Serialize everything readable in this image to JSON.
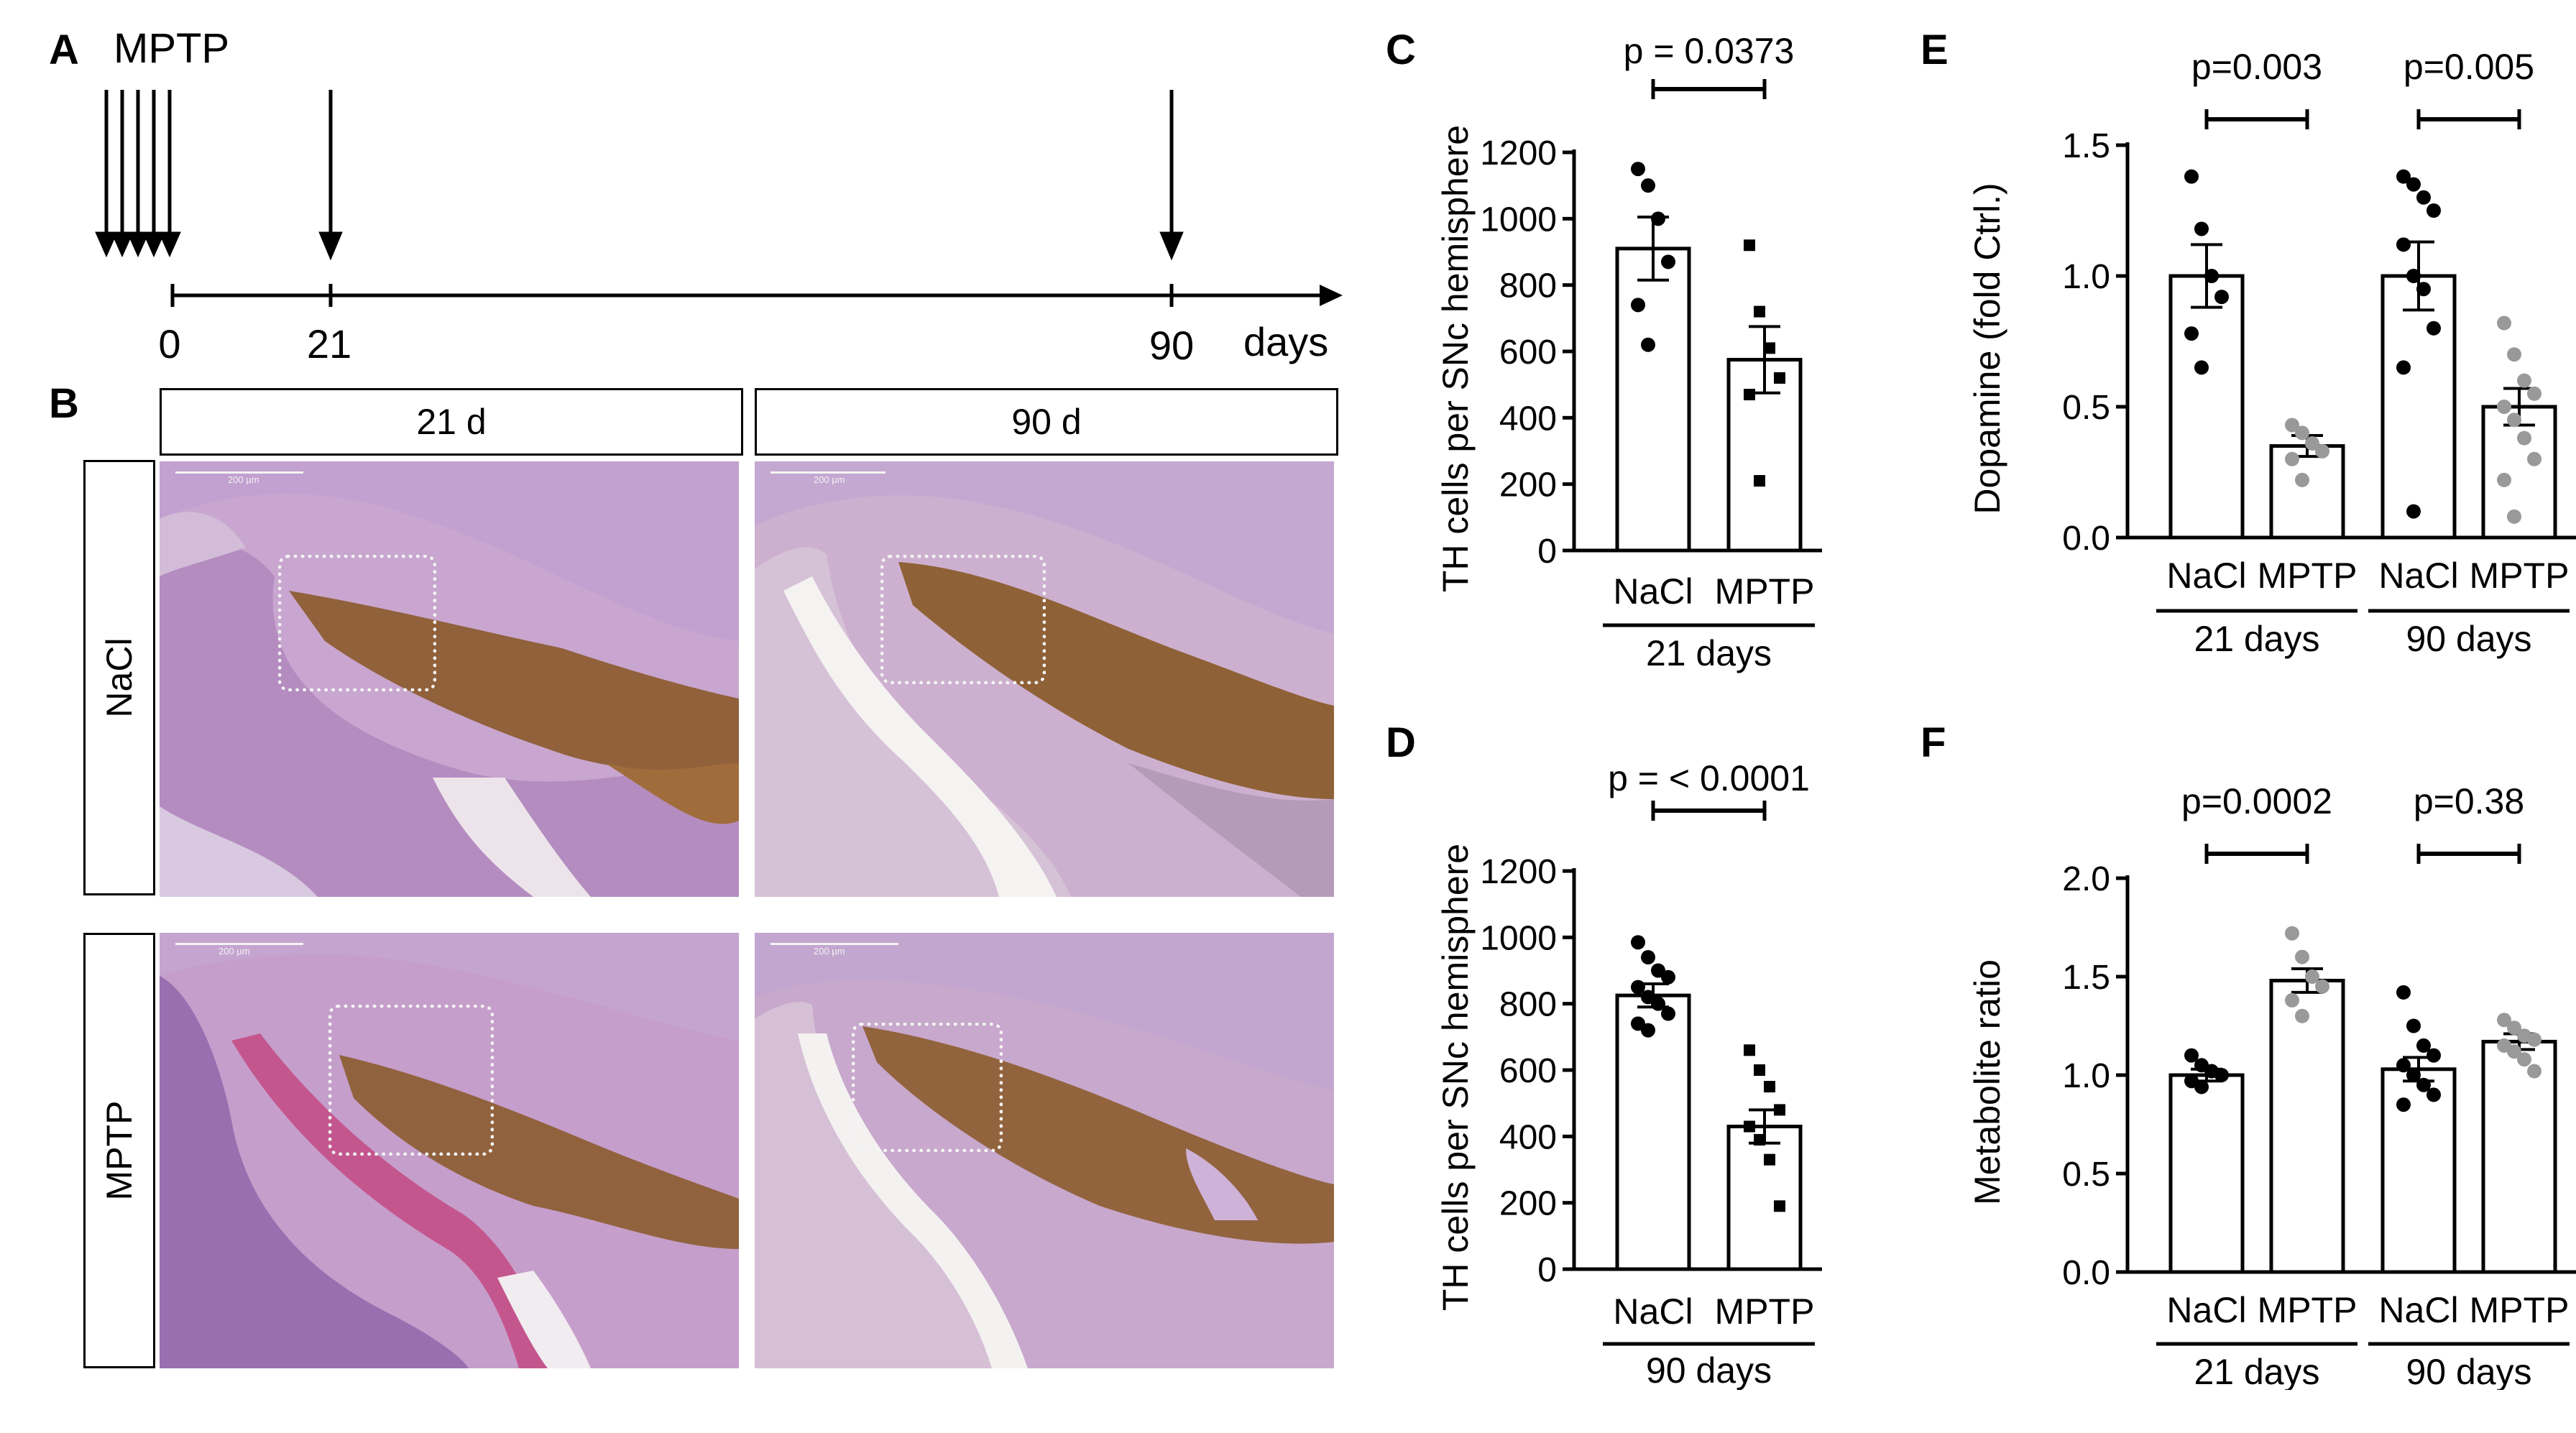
{
  "panels": {
    "A": {
      "letter": "A",
      "treatment_label": "MPTP",
      "ticks": [
        "0",
        "21",
        "90"
      ],
      "unit": "days"
    },
    "B": {
      "letter": "B",
      "columns": [
        "21 d",
        "90 d"
      ],
      "rows": [
        "NaCl",
        "MPTP"
      ],
      "scale_bar_label": "200 µm",
      "colors": {
        "stain_brown": "#8a5a2a",
        "tissue_purple": "#b98ac6",
        "background": "#f3efee"
      }
    }
  },
  "chart_data": [
    {
      "panel": "C",
      "type": "bar",
      "ylabel": "TH cells per SNc hemisphere",
      "ylim": [
        0,
        1200
      ],
      "yticks": [
        0,
        200,
        400,
        600,
        800,
        1000,
        1200
      ],
      "categories": [
        "NaCl",
        "MPTP"
      ],
      "groups": [
        {
          "label": "21 days",
          "categories": [
            "NaCl",
            "MPTP"
          ]
        }
      ],
      "values": [
        910,
        575
      ],
      "sem": [
        95,
        100
      ],
      "points": [
        [
          1150,
          1100,
          1000,
          870,
          740,
          620
        ],
        [
          920,
          720,
          610,
          520,
          470,
          210
        ]
      ],
      "markers": [
        "circle",
        "square"
      ],
      "point_colors": [
        "#000000",
        "#000000"
      ],
      "comparisons": [
        {
          "text": "p = 0.0373",
          "between": [
            0,
            1
          ]
        }
      ]
    },
    {
      "panel": "D",
      "type": "bar",
      "ylabel": "TH cells per SNc hemisphere",
      "ylim": [
        0,
        1200
      ],
      "yticks": [
        0,
        200,
        400,
        600,
        800,
        1000,
        1200
      ],
      "categories": [
        "NaCl",
        "MPTP"
      ],
      "groups": [
        {
          "label": "90 days",
          "categories": [
            "NaCl",
            "MPTP"
          ]
        }
      ],
      "values": [
        825,
        430
      ],
      "sem": [
        35,
        50
      ],
      "points": [
        [
          985,
          940,
          900,
          880,
          850,
          820,
          800,
          770,
          740,
          720
        ],
        [
          660,
          600,
          550,
          480,
          430,
          390,
          330,
          190
        ]
      ],
      "markers": [
        "circle",
        "square"
      ],
      "point_colors": [
        "#000000",
        "#000000"
      ],
      "comparisons": [
        {
          "text": "p = < 0.0001",
          "between": [
            0,
            1
          ]
        }
      ]
    },
    {
      "panel": "E",
      "type": "bar",
      "ylabel": "Dopamine (fold Ctrl.)",
      "ylim": [
        0,
        1.5
      ],
      "yticks": [
        0.0,
        0.5,
        1.0,
        1.5
      ],
      "categories": [
        "NaCl",
        "MPTP",
        "NaCl",
        "MPTP"
      ],
      "groups": [
        {
          "label": "21 days",
          "categories": [
            "NaCl",
            "MPTP"
          ]
        },
        {
          "label": "90 days",
          "categories": [
            "NaCl",
            "MPTP"
          ]
        }
      ],
      "values": [
        1.0,
        0.35,
        1.0,
        0.5
      ],
      "sem": [
        0.12,
        0.04,
        0.13,
        0.07
      ],
      "points": [
        [
          1.38,
          1.18,
          1.0,
          0.92,
          0.78,
          0.65
        ],
        [
          0.43,
          0.4,
          0.36,
          0.33,
          0.3,
          0.22
        ],
        [
          1.38,
          1.35,
          1.3,
          1.25,
          1.12,
          1.0,
          0.95,
          0.8,
          0.65,
          0.1
        ],
        [
          0.82,
          0.7,
          0.6,
          0.55,
          0.5,
          0.45,
          0.38,
          0.3,
          0.22,
          0.08
        ]
      ],
      "markers": [
        "circle",
        "circle",
        "circle",
        "circle"
      ],
      "point_colors": [
        "#000000",
        "#999999",
        "#000000",
        "#999999"
      ],
      "comparisons": [
        {
          "text": "p=0.003",
          "between": [
            0,
            1
          ]
        },
        {
          "text": "p=0.005",
          "between": [
            2,
            3
          ]
        }
      ]
    },
    {
      "panel": "F",
      "type": "bar",
      "ylabel": "Metabolite ratio",
      "ylim": [
        0,
        2.0
      ],
      "yticks": [
        0.0,
        0.5,
        1.0,
        1.5,
        2.0
      ],
      "categories": [
        "NaCl",
        "MPTP",
        "NaCl",
        "MPTP"
      ],
      "groups": [
        {
          "label": "21 days",
          "categories": [
            "NaCl",
            "MPTP"
          ]
        },
        {
          "label": "90 days",
          "categories": [
            "NaCl",
            "MPTP"
          ]
        }
      ],
      "values": [
        1.0,
        1.48,
        1.03,
        1.17
      ],
      "sem": [
        0.03,
        0.06,
        0.06,
        0.04
      ],
      "points": [
        [
          1.1,
          1.05,
          1.02,
          1.0,
          0.97,
          0.94
        ],
        [
          1.72,
          1.6,
          1.5,
          1.45,
          1.38,
          1.3
        ],
        [
          1.42,
          1.25,
          1.15,
          1.1,
          1.05,
          1.0,
          0.95,
          0.9,
          0.85
        ],
        [
          1.28,
          1.24,
          1.2,
          1.18,
          1.15,
          1.12,
          1.08,
          1.02
        ]
      ],
      "markers": [
        "circle",
        "circle",
        "circle",
        "circle"
      ],
      "point_colors": [
        "#000000",
        "#999999",
        "#000000",
        "#999999"
      ],
      "comparisons": [
        {
          "text": "p=0.0002",
          "between": [
            0,
            1
          ]
        },
        {
          "text": "p=0.38",
          "between": [
            2,
            3
          ]
        }
      ]
    }
  ]
}
